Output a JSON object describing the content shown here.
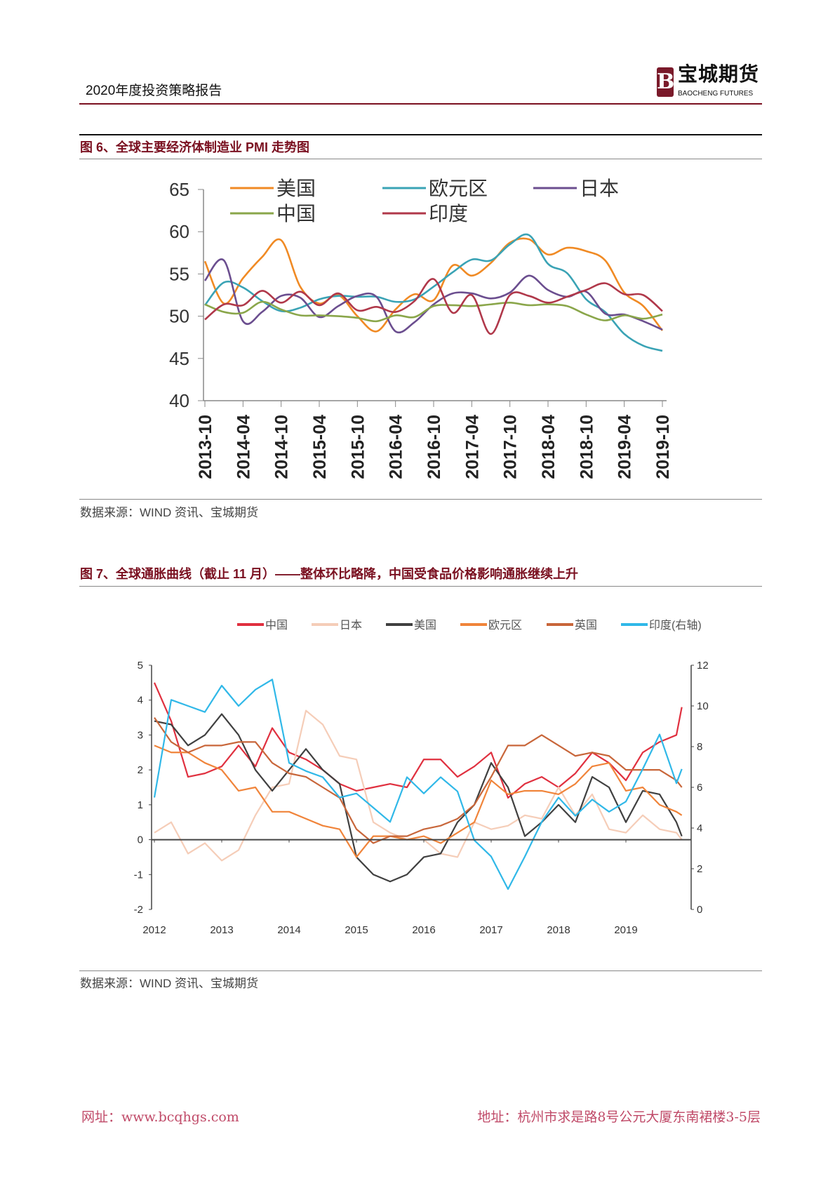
{
  "header": {
    "report_title": "2020年度投资策略报告",
    "logo_cn": "宝城期货",
    "logo_en": "BAOCHENG FUTURES",
    "logo_mark": "B"
  },
  "figure6": {
    "title": "图 6、全球主要经济体制造业 PMI 走势图",
    "source": "数据来源：WIND 资讯、宝城期货"
  },
  "figure7": {
    "title": "图 7、全球通胀曲线（截止 11 月）——整体环比略降，中国受食品价格影响通胀继续上升",
    "source": "数据来源：WIND 资讯、宝城期货"
  },
  "footer": {
    "website": "网址：www.bcqhgs.com",
    "address": "地址：杭州市求是路8号公元大厦东南裙楼3-5层"
  },
  "chart_data": [
    {
      "type": "line",
      "title": "",
      "ylim": [
        40,
        65
      ],
      "yticks": [
        40,
        45,
        50,
        55,
        60,
        65
      ],
      "xtick_labels": [
        "2013-10",
        "2014-04",
        "2014-10",
        "2015-04",
        "2015-10",
        "2016-04",
        "2016-10",
        "2017-04",
        "2017-10",
        "2018-04",
        "2018-10",
        "2019-04",
        "2019-10"
      ],
      "x": [
        "2013-10",
        "2014-01",
        "2014-04",
        "2014-07",
        "2014-10",
        "2015-01",
        "2015-04",
        "2015-07",
        "2015-10",
        "2016-01",
        "2016-04",
        "2016-07",
        "2016-10",
        "2017-01",
        "2017-04",
        "2017-07",
        "2017-10",
        "2018-01",
        "2018-04",
        "2018-07",
        "2018-10",
        "2019-01",
        "2019-04",
        "2019-07",
        "2019-10"
      ],
      "legend_placement": "top",
      "grid": false,
      "series": [
        {
          "name": "美国",
          "color": "#f08a24",
          "values": [
            56.5,
            51.5,
            54.5,
            57.0,
            59.0,
            53.5,
            51.5,
            52.5,
            50.0,
            48.2,
            50.8,
            52.6,
            51.9,
            56.0,
            54.8,
            56.3,
            58.7,
            59.1,
            57.3,
            58.1,
            57.7,
            56.6,
            52.8,
            51.2,
            48.3
          ]
        },
        {
          "name": "欧元区",
          "color": "#3aa3b5",
          "values": [
            51.3,
            54.0,
            53.4,
            51.8,
            50.6,
            51.0,
            52.0,
            52.4,
            52.3,
            52.3,
            51.7,
            52.0,
            53.5,
            55.2,
            56.7,
            56.6,
            58.5,
            59.6,
            56.2,
            55.1,
            52.0,
            50.5,
            47.9,
            46.5,
            45.9
          ]
        },
        {
          "name": "日本",
          "color": "#6b4e8f",
          "values": [
            54.2,
            56.6,
            49.4,
            50.5,
            52.4,
            52.2,
            49.9,
            51.2,
            52.4,
            52.3,
            48.2,
            49.3,
            51.4,
            52.7,
            52.7,
            52.1,
            52.8,
            54.8,
            53.1,
            52.3,
            52.9,
            50.3,
            50.2,
            49.4,
            48.4
          ]
        },
        {
          "name": "中国",
          "color": "#8aa64a",
          "values": [
            51.4,
            50.5,
            50.4,
            51.7,
            50.8,
            50.1,
            50.1,
            50.0,
            49.8,
            49.4,
            50.1,
            49.9,
            51.2,
            51.3,
            51.2,
            51.4,
            51.6,
            51.3,
            51.4,
            51.2,
            50.2,
            49.5,
            50.1,
            49.7,
            50.2
          ]
        },
        {
          "name": "印度",
          "color": "#b0384a",
          "values": [
            49.6,
            51.4,
            51.3,
            53.0,
            51.6,
            52.9,
            51.3,
            52.7,
            50.7,
            51.1,
            50.5,
            51.8,
            54.4,
            50.4,
            52.5,
            47.9,
            52.5,
            52.4,
            51.6,
            52.3,
            53.1,
            53.9,
            52.6,
            52.5,
            50.6
          ]
        }
      ]
    },
    {
      "type": "line",
      "title": "",
      "ylim": [
        -2,
        5
      ],
      "yticks": [
        -2,
        -1,
        0,
        1,
        2,
        3,
        4,
        5
      ],
      "y2lim": [
        0,
        12
      ],
      "y2ticks": [
        0,
        2,
        4,
        6,
        8,
        10,
        12
      ],
      "xtick_labels": [
        "2012",
        "2013",
        "2014",
        "2015",
        "2016",
        "2017",
        "2018",
        "2019"
      ],
      "x": [
        2012.0,
        2012.25,
        2012.5,
        2012.75,
        2013.0,
        2013.25,
        2013.5,
        2013.75,
        2014.0,
        2014.25,
        2014.5,
        2014.75,
        2015.0,
        2015.25,
        2015.5,
        2015.75,
        2016.0,
        2016.25,
        2016.5,
        2016.75,
        2017.0,
        2017.25,
        2017.5,
        2017.75,
        2018.0,
        2018.25,
        2018.5,
        2018.75,
        2019.0,
        2019.25,
        2019.5,
        2019.75,
        2019.83
      ],
      "legend_placement": "top",
      "grid": false,
      "series": [
        {
          "name": "中国",
          "color": "#e0303f",
          "axis": "left",
          "values": [
            4.5,
            3.4,
            1.8,
            1.9,
            2.1,
            2.7,
            2.1,
            3.2,
            2.5,
            2.3,
            2.0,
            1.6,
            1.4,
            1.5,
            1.6,
            1.5,
            2.3,
            2.3,
            1.8,
            2.1,
            2.5,
            1.2,
            1.6,
            1.8,
            1.5,
            1.9,
            2.5,
            2.2,
            1.7,
            2.5,
            2.8,
            3.0,
            3.8
          ]
        },
        {
          "name": "日本",
          "color": "#f5cdb8",
          "axis": "left",
          "values": [
            0.2,
            0.5,
            -0.4,
            -0.1,
            -0.6,
            -0.3,
            0.7,
            1.5,
            1.6,
            3.7,
            3.3,
            2.4,
            2.3,
            0.5,
            0.2,
            0.0,
            0.0,
            -0.4,
            -0.5,
            0.5,
            0.3,
            0.4,
            0.7,
            0.6,
            1.5,
            0.7,
            1.3,
            0.3,
            0.2,
            0.7,
            0.3,
            0.2,
            0.0
          ]
        },
        {
          "name": "美国",
          "color": "#404040",
          "axis": "left",
          "values": [
            3.4,
            3.3,
            2.7,
            3.0,
            3.6,
            3.0,
            2.0,
            1.4,
            2.0,
            2.6,
            2.0,
            1.6,
            -0.5,
            -1.0,
            -1.2,
            -1.0,
            -0.5,
            -0.4,
            0.5,
            1.0,
            2.2,
            1.5,
            0.1,
            0.5,
            1.0,
            0.5,
            1.8,
            1.5,
            0.5,
            1.4,
            1.3,
            0.5,
            0.1
          ]
        },
        {
          "name": "欧元区",
          "color": "#f0843a",
          "axis": "left",
          "values": [
            2.7,
            2.5,
            2.5,
            2.2,
            2.0,
            1.4,
            1.5,
            0.8,
            0.8,
            0.6,
            0.4,
            0.3,
            -0.5,
            0.1,
            0.1,
            0.0,
            0.1,
            -0.1,
            0.2,
            0.5,
            1.7,
            1.3,
            1.4,
            1.4,
            1.3,
            1.6,
            2.1,
            2.2,
            1.4,
            1.5,
            1.0,
            0.8,
            0.7
          ]
        },
        {
          "name": "英国",
          "color": "#c8663a",
          "axis": "left",
          "values": [
            3.5,
            2.8,
            2.5,
            2.7,
            2.7,
            2.8,
            2.8,
            2.2,
            1.9,
            1.8,
            1.5,
            1.2,
            0.3,
            -0.1,
            0.1,
            0.1,
            0.3,
            0.4,
            0.6,
            1.0,
            1.8,
            2.7,
            2.7,
            3.0,
            2.7,
            2.4,
            2.5,
            2.4,
            2.0,
            2.0,
            2.0,
            1.7,
            1.5
          ]
        },
        {
          "name": "印度(右轴)",
          "color": "#30b8e8",
          "axis": "right",
          "values": [
            5.5,
            10.3,
            10.0,
            9.7,
            11.0,
            10.0,
            10.8,
            11.3,
            7.2,
            6.8,
            6.5,
            5.5,
            5.7,
            5.0,
            4.3,
            6.5,
            5.7,
            6.5,
            5.8,
            3.4,
            2.6,
            1.0,
            2.6,
            4.3,
            5.5,
            4.6,
            5.4,
            4.8,
            5.3,
            6.9,
            8.6,
            6.2,
            6.9
          ]
        }
      ]
    }
  ]
}
